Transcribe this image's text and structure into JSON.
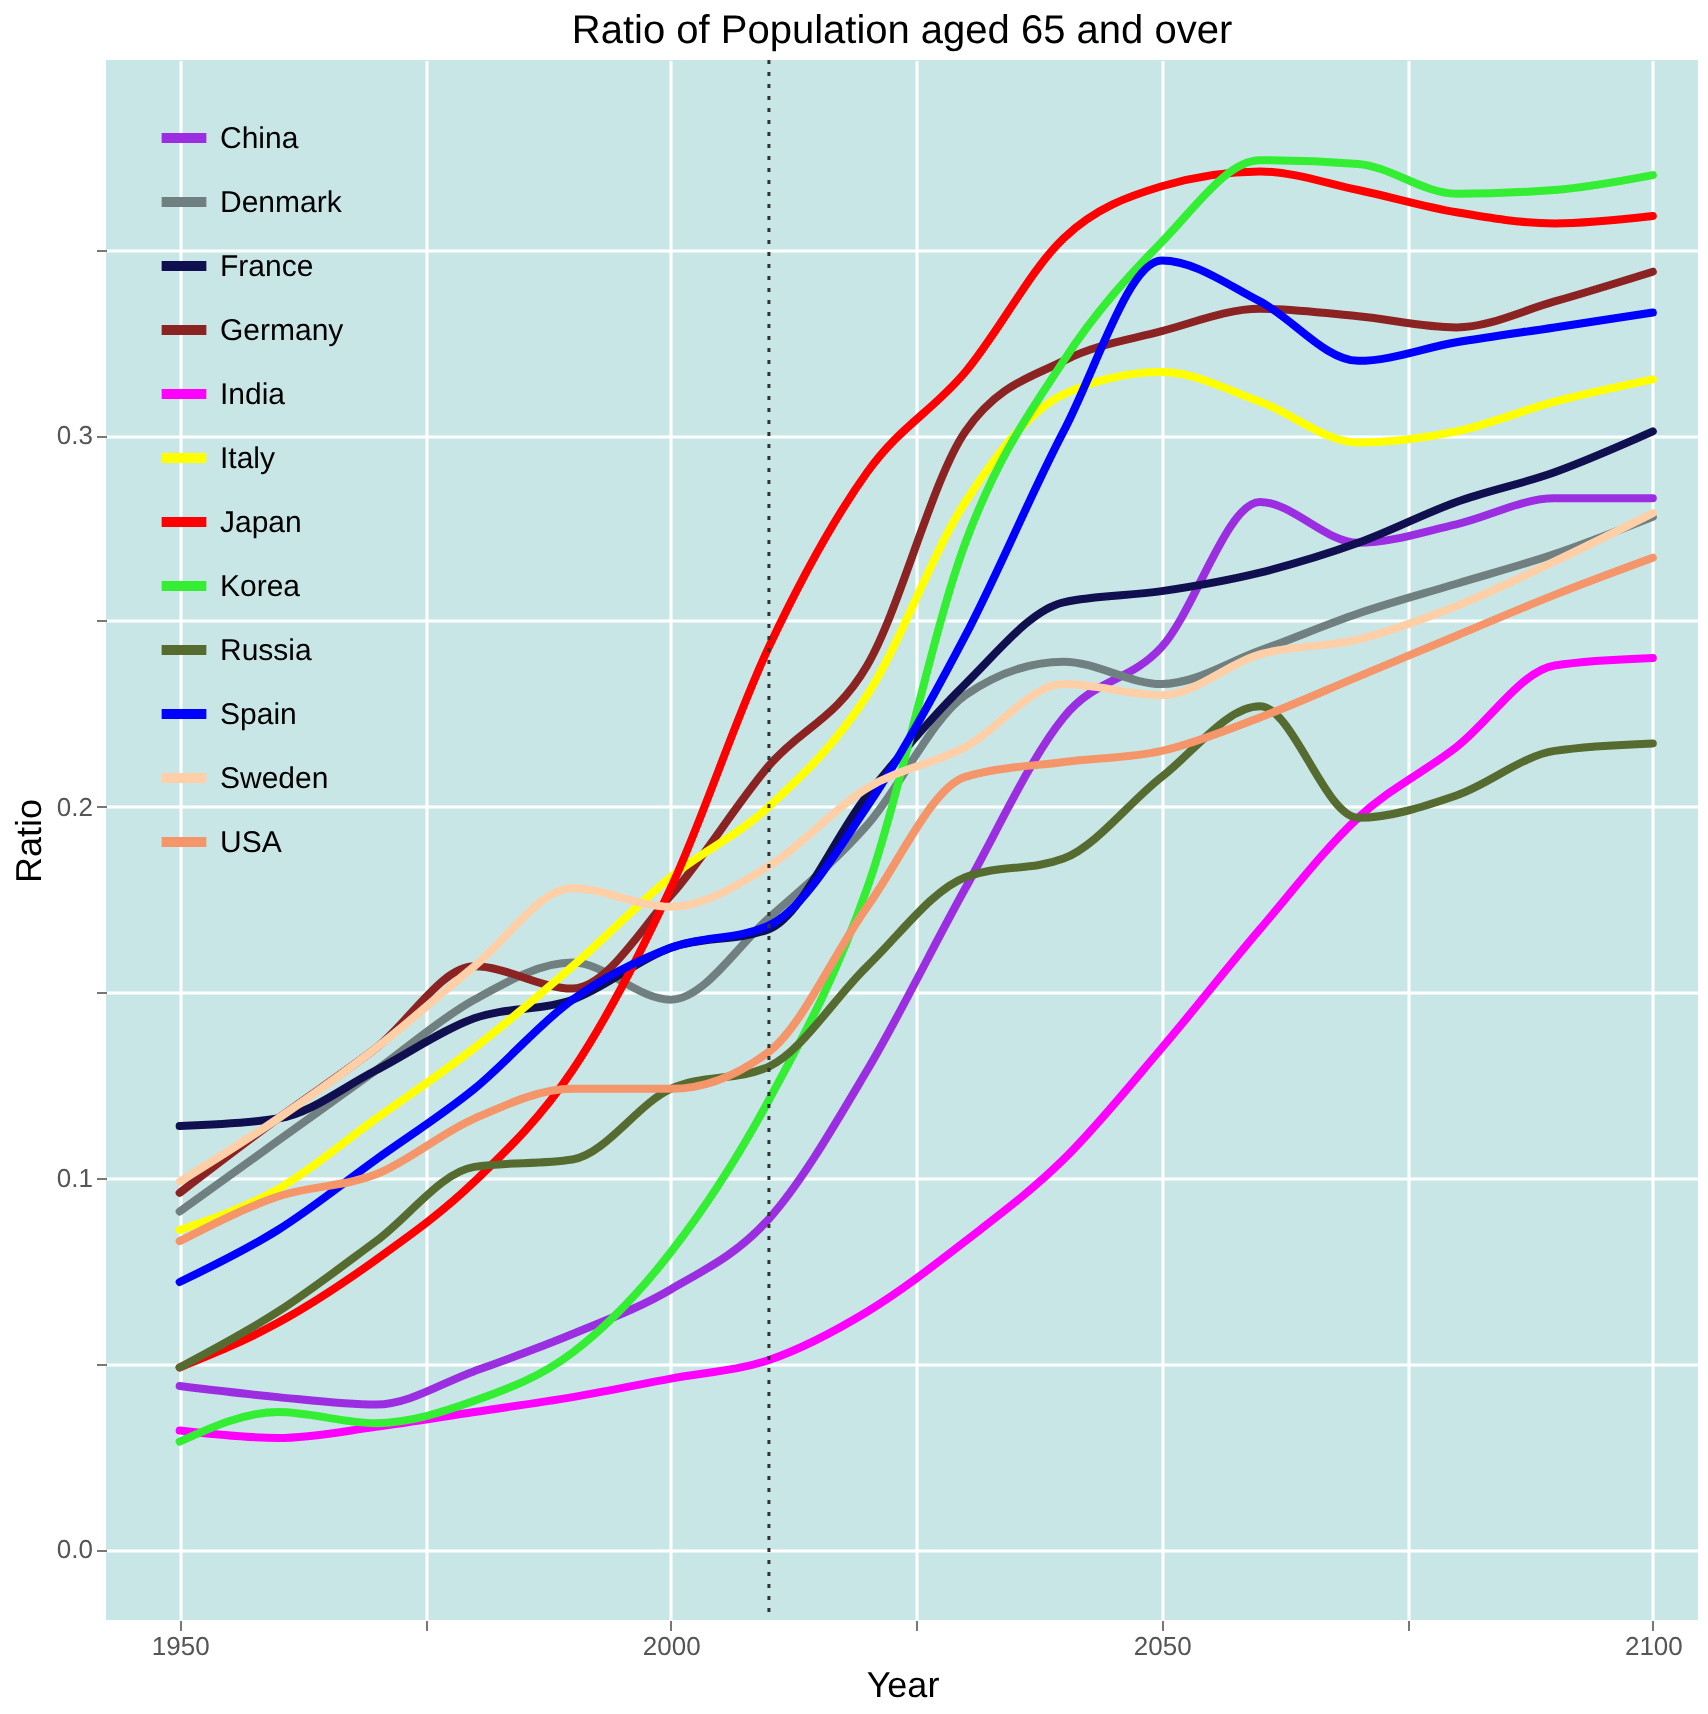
{
  "chart_data": {
    "type": "line",
    "title": "Ratio of Population aged 65 and over",
    "xlabel": "Year",
    "ylabel": "Ratio",
    "x": [
      1950,
      1960,
      1970,
      1980,
      1990,
      2000,
      2010,
      2020,
      2030,
      2040,
      2050,
      2060,
      2070,
      2080,
      2090,
      2100
    ],
    "series": [
      {
        "name": "China",
        "color": "#9a2ee0",
        "values": [
          0.044,
          0.041,
          0.039,
          0.048,
          0.058,
          0.07,
          0.089,
          0.129,
          0.178,
          0.224,
          0.243,
          0.282,
          0.271,
          0.276,
          0.283,
          0.283
        ]
      },
      {
        "name": "Denmark",
        "color": "#708080",
        "values": [
          0.091,
          0.11,
          0.129,
          0.148,
          0.158,
          0.148,
          0.17,
          0.195,
          0.23,
          0.239,
          0.233,
          0.242,
          0.252,
          0.26,
          0.268,
          0.278
        ]
      },
      {
        "name": "France",
        "color": "#101050",
        "values": [
          0.114,
          0.116,
          0.129,
          0.143,
          0.148,
          0.162,
          0.167,
          0.203,
          0.233,
          0.255,
          0.258,
          0.263,
          0.271,
          0.282,
          0.29,
          0.301
        ]
      },
      {
        "name": "Germany",
        "color": "#8b2323",
        "values": [
          0.096,
          0.116,
          0.135,
          0.157,
          0.151,
          0.176,
          0.211,
          0.238,
          0.301,
          0.32,
          0.328,
          0.334,
          0.332,
          0.329,
          0.336,
          0.344
        ]
      },
      {
        "name": "India",
        "color": "#ff00ff",
        "values": [
          0.032,
          0.03,
          0.033,
          0.037,
          0.041,
          0.046,
          0.051,
          0.064,
          0.083,
          0.105,
          0.135,
          0.167,
          0.197,
          0.216,
          0.238,
          0.24
        ]
      },
      {
        "name": "Italy",
        "color": "#ffff00",
        "values": [
          0.086,
          0.097,
          0.116,
          0.135,
          0.157,
          0.181,
          0.2,
          0.23,
          0.282,
          0.311,
          0.317,
          0.309,
          0.298,
          0.301,
          0.309,
          0.315
        ]
      },
      {
        "name": "Japan",
        "color": "#ff0000",
        "values": [
          0.049,
          0.061,
          0.078,
          0.099,
          0.129,
          0.178,
          0.243,
          0.29,
          0.317,
          0.353,
          0.367,
          0.371,
          0.366,
          0.36,
          0.357,
          0.359
        ]
      },
      {
        "name": "Korea",
        "color": "#33ee33",
        "values": [
          0.029,
          0.037,
          0.034,
          0.04,
          0.053,
          0.08,
          0.121,
          0.178,
          0.271,
          0.32,
          0.352,
          0.374,
          0.373,
          0.365,
          0.366,
          0.37
        ]
      },
      {
        "name": "Russia",
        "color": "#556b2f",
        "values": [
          0.049,
          0.064,
          0.083,
          0.103,
          0.105,
          0.124,
          0.13,
          0.157,
          0.181,
          0.186,
          0.208,
          0.227,
          0.197,
          0.203,
          0.215,
          0.217
        ]
      },
      {
        "name": "Spain",
        "color": "#0000ff",
        "values": [
          0.072,
          0.086,
          0.105,
          0.124,
          0.148,
          0.162,
          0.168,
          0.2,
          0.246,
          0.301,
          0.347,
          0.336,
          0.32,
          0.325,
          0.329,
          0.333
        ]
      },
      {
        "name": "Sweden",
        "color": "#ffcfa8",
        "values": [
          0.099,
          0.116,
          0.135,
          0.157,
          0.178,
          0.173,
          0.184,
          0.205,
          0.216,
          0.233,
          0.23,
          0.241,
          0.245,
          0.254,
          0.266,
          0.279
        ]
      },
      {
        "name": "USA",
        "color": "#f4956a",
        "values": [
          0.083,
          0.095,
          0.101,
          0.116,
          0.124,
          0.124,
          0.134,
          0.173,
          0.208,
          0.212,
          0.215,
          0.224,
          0.235,
          0.246,
          0.257,
          0.267
        ]
      }
    ],
    "xlim": [
      1942.5,
      2104.6
    ],
    "ylim": [
      -0.019,
      0.401
    ],
    "xticks": [
      1950,
      {
        "value": 1975,
        "label": null
      },
      2000,
      {
        "value": 2025,
        "label": null
      },
      2050,
      {
        "value": 2075,
        "label": null
      },
      2100
    ],
    "yticks": [
      {
        "value": 0,
        "label": "0.0"
      },
      {
        "value": 0.05,
        "label": null
      },
      0.1,
      {
        "value": 0.15,
        "label": null
      },
      0.2,
      {
        "value": 0.25,
        "label": null
      },
      0.3,
      {
        "value": 0.35,
        "label": null
      }
    ],
    "ref_lines": [
      {
        "axis": "x",
        "value": 2010,
        "color": "#333333",
        "line_style": "dotted"
      }
    ],
    "grid": true,
    "legend": "top left",
    "line_style": "solid"
  }
}
